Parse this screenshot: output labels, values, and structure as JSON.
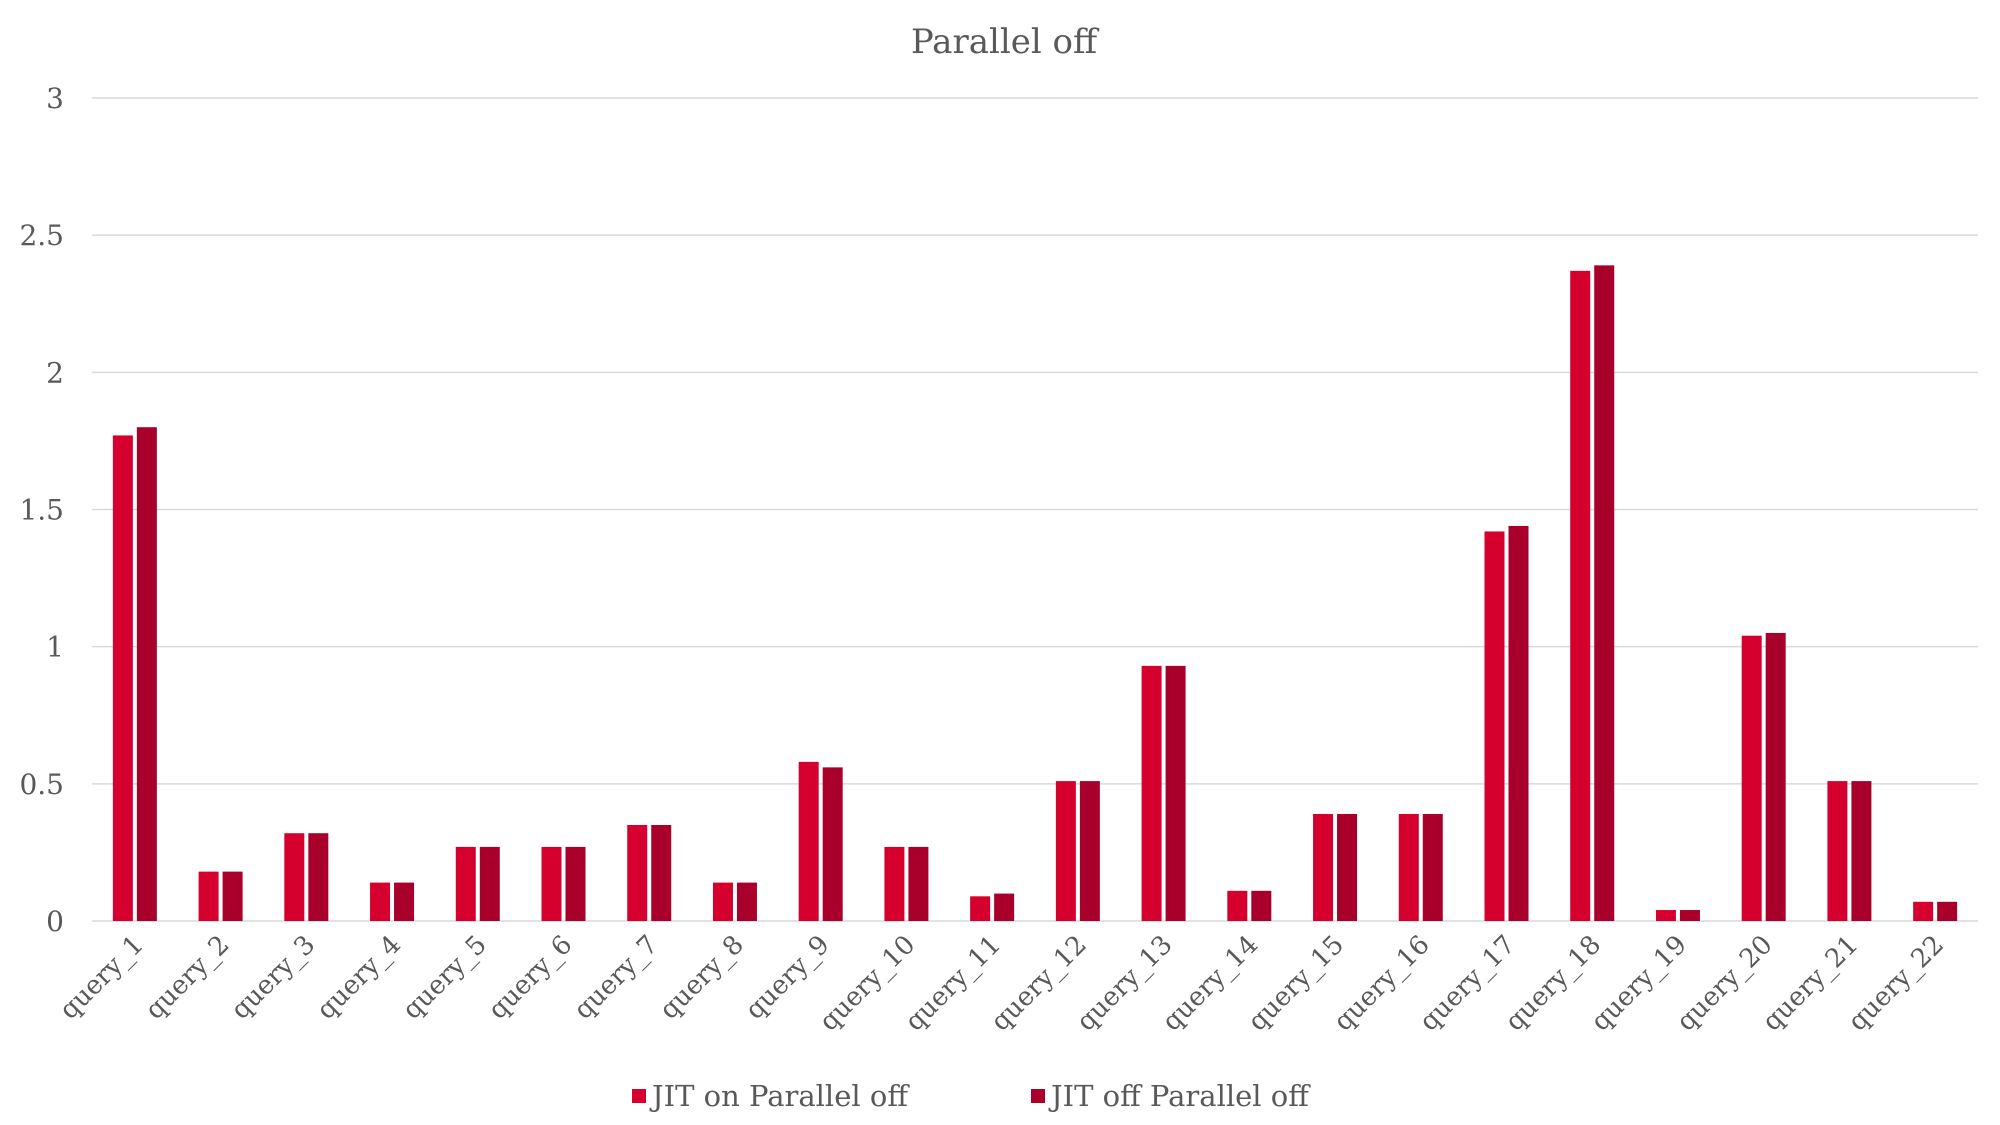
{
  "chart_data": {
    "type": "bar",
    "title": "Parallel off",
    "xlabel": "",
    "ylabel": "",
    "ylim": [
      0,
      3
    ],
    "yticks": [
      "0",
      "0.5",
      "1",
      "1.5",
      "2",
      "2.5",
      "3"
    ],
    "yticks_values": [
      0,
      0.5,
      1,
      1.5,
      2,
      2.5,
      3
    ],
    "grid": true,
    "legend_position": "bottom",
    "categories": [
      "query_1",
      "query_2",
      "query_3",
      "query_4",
      "query_5",
      "query_6",
      "query_7",
      "query_8",
      "query_9",
      "query_10",
      "query_11",
      "query_12",
      "query_13",
      "query_14",
      "query_15",
      "query_16",
      "query_17",
      "query_18",
      "query_19",
      "query_20",
      "query_21",
      "query_22"
    ],
    "series": [
      {
        "name": "JIT on Parallel off",
        "color": "#d6002f",
        "values": [
          1.77,
          0.18,
          0.32,
          0.14,
          0.27,
          0.27,
          0.35,
          0.14,
          0.58,
          0.27,
          0.09,
          0.51,
          0.93,
          0.11,
          0.39,
          0.39,
          1.42,
          2.37,
          0.04,
          1.04,
          0.51,
          0.07
        ]
      },
      {
        "name": "JIT off Parallel off",
        "color": "#a8002a",
        "values": [
          1.8,
          0.18,
          0.32,
          0.14,
          0.27,
          0.27,
          0.35,
          0.14,
          0.56,
          0.27,
          0.1,
          0.51,
          0.93,
          0.11,
          0.39,
          0.39,
          1.44,
          2.39,
          0.04,
          1.05,
          0.51,
          0.07
        ]
      }
    ]
  }
}
